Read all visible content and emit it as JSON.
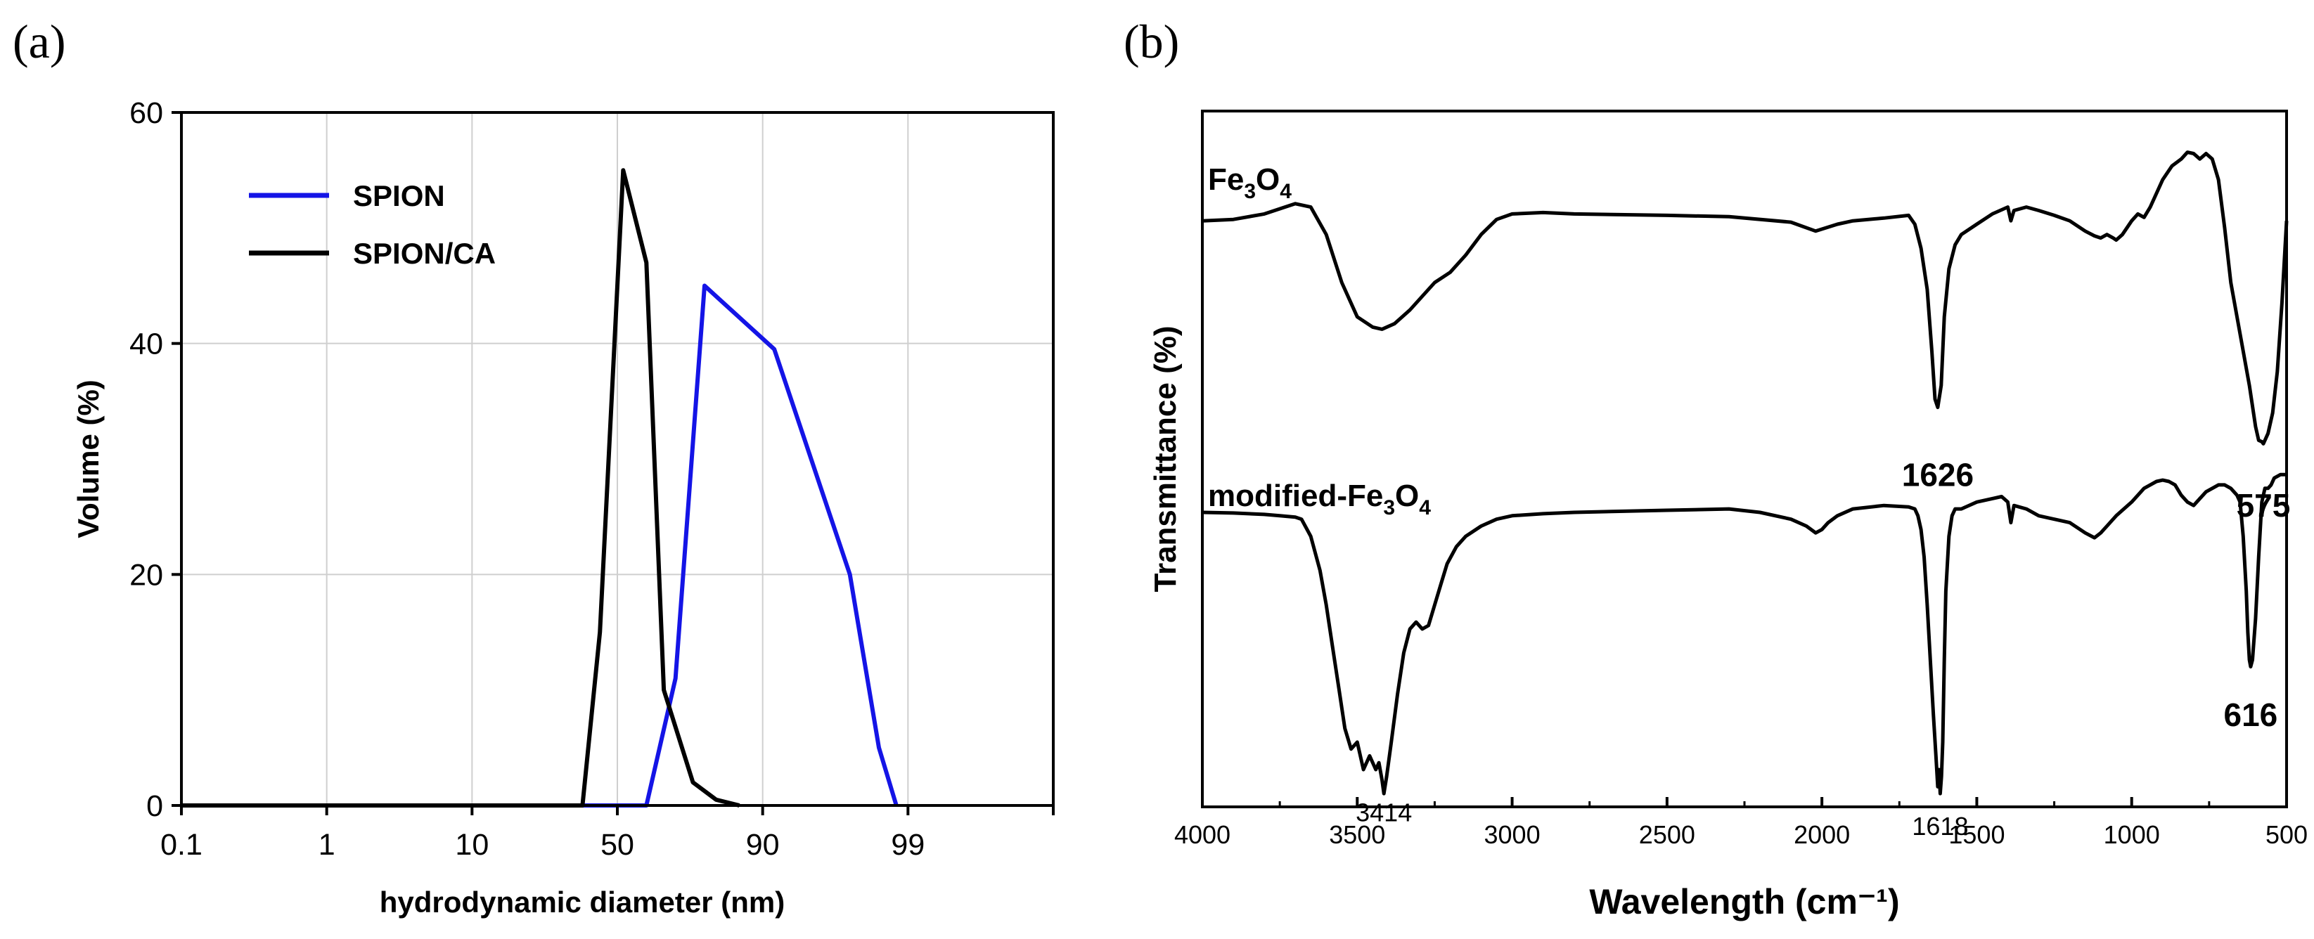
{
  "panel_labels": {
    "a": "(a)",
    "b": "(b)"
  },
  "chart_data": [
    {
      "type": "line",
      "panel": "(a)",
      "xlabel": "hydrodynamic diameter (nm)",
      "ylabel": "Volume (%)",
      "ylim": [
        0,
        60
      ],
      "xlim": [
        0,
        150
      ],
      "yticks": [
        0,
        20,
        40,
        60
      ],
      "xticks": [
        {
          "value": 0,
          "label": "0.1"
        },
        {
          "value": 25,
          "label": "1"
        },
        {
          "value": 50,
          "label": "10"
        },
        {
          "value": 75,
          "label": "50"
        },
        {
          "value": 100,
          "label": "90"
        },
        {
          "value": 125,
          "label": "99"
        },
        {
          "value": 150,
          "label": ""
        }
      ],
      "grid": true,
      "legend": "top-left",
      "series": [
        {
          "name": "SPION",
          "color": "#1414e6",
          "x": [
            0,
            80,
            85,
            90,
            102,
            115,
            120,
            123
          ],
          "y": [
            0,
            0,
            11,
            45,
            39.5,
            20,
            5,
            0
          ]
        },
        {
          "name": "SPION/CA",
          "color": "#000000",
          "x": [
            0,
            69,
            72,
            76,
            80,
            83,
            88,
            92,
            96
          ],
          "y": [
            0,
            0,
            15,
            55,
            47,
            10,
            2,
            0.5,
            0
          ]
        }
      ]
    },
    {
      "type": "line",
      "panel": "(b)",
      "xlabel": "Wavelength (cm⁻¹)",
      "ylabel": "Transmittance (%)",
      "xlim": [
        4000,
        500
      ],
      "ylim": [
        0,
        100
      ],
      "xticks": [
        4000,
        3500,
        3000,
        2500,
        2000,
        1500,
        1000,
        500
      ],
      "yticks_shown": false,
      "series": [
        {
          "name": "Fe3O4",
          "label_base": "Fe",
          "label_sub1": "3",
          "label_mid": "O",
          "label_sub2": "4",
          "color": "#000000",
          "x": [
            4000,
            3900,
            3800,
            3700,
            3650,
            3600,
            3550,
            3500,
            3450,
            3420,
            3380,
            3330,
            3250,
            3200,
            3150,
            3100,
            3050,
            3000,
            2900,
            2800,
            2500,
            2300,
            2100,
            2020,
            1950,
            1900,
            1800,
            1720,
            1700,
            1680,
            1660,
            1645,
            1635,
            1626,
            1615,
            1605,
            1590,
            1570,
            1550,
            1500,
            1450,
            1400,
            1390,
            1380,
            1340,
            1300,
            1250,
            1200,
            1150,
            1120,
            1100,
            1080,
            1060,
            1050,
            1030,
            1000,
            980,
            960,
            940,
            900,
            870,
            840,
            820,
            800,
            780,
            760,
            740,
            720,
            700,
            680,
            660,
            640,
            620,
            600,
            590,
            580,
            575,
            570,
            560,
            545,
            530,
            515,
            505,
            500
          ],
          "y": [
            84.0,
            84.2,
            85.0,
            86.5,
            86.0,
            82.0,
            75.0,
            70.0,
            68.5,
            68.2,
            69.0,
            71.0,
            75.0,
            76.5,
            79.0,
            82.0,
            84.2,
            85.0,
            85.2,
            85.0,
            84.8,
            84.6,
            83.8,
            82.5,
            83.5,
            84.0,
            84.4,
            84.8,
            83.5,
            80.0,
            74.0,
            65.0,
            58.0,
            56.8,
            60.0,
            70.0,
            77.0,
            80.5,
            82.0,
            83.5,
            85.0,
            86.0,
            84.0,
            85.5,
            86.0,
            85.5,
            84.8,
            84.0,
            82.5,
            81.8,
            81.5,
            82.0,
            81.5,
            81.2,
            82.0,
            84.0,
            85.0,
            84.5,
            86.0,
            90.0,
            92.0,
            93.0,
            94.0,
            93.8,
            93.0,
            93.8,
            93.0,
            90.0,
            83.0,
            75.0,
            70.0,
            65.0,
            60.0,
            54.0,
            52.0,
            51.8,
            51.5,
            52.0,
            53.0,
            56.0,
            62.0,
            72.0,
            80.0,
            84.0
          ]
        },
        {
          "name": "modified-Fe3O4",
          "label_base": "modified-Fe",
          "label_sub1": "3",
          "label_mid": "O",
          "label_sub2": "4",
          "color": "#000000",
          "x": [
            4000,
            3900,
            3800,
            3750,
            3700,
            3680,
            3650,
            3620,
            3600,
            3580,
            3560,
            3540,
            3520,
            3500,
            3480,
            3460,
            3440,
            3430,
            3420,
            3414,
            3405,
            3390,
            3370,
            3350,
            3330,
            3310,
            3290,
            3270,
            3250,
            3230,
            3210,
            3180,
            3150,
            3100,
            3050,
            3000,
            2900,
            2800,
            2500,
            2300,
            2200,
            2100,
            2050,
            2020,
            2000,
            1980,
            1950,
            1900,
            1800,
            1720,
            1700,
            1690,
            1680,
            1670,
            1660,
            1650,
            1640,
            1632,
            1626,
            1622,
            1618,
            1614,
            1610,
            1605,
            1600,
            1590,
            1580,
            1570,
            1550,
            1500,
            1450,
            1420,
            1400,
            1390,
            1380,
            1340,
            1300,
            1250,
            1200,
            1150,
            1120,
            1100,
            1080,
            1050,
            1000,
            980,
            960,
            940,
            920,
            900,
            880,
            860,
            840,
            820,
            800,
            780,
            760,
            740,
            720,
            700,
            680,
            670,
            660,
            650,
            640,
            630,
            625,
            620,
            616,
            610,
            600,
            590,
            580,
            570,
            560,
            550,
            540,
            520,
            505,
            500
          ],
          "y": [
            41.5,
            41.4,
            41.2,
            41.0,
            40.8,
            40.5,
            38.0,
            33.0,
            28.0,
            22.0,
            16.0,
            10.0,
            7.0,
            8.0,
            4.0,
            6.0,
            4.0,
            5.0,
            2.5,
            0.5,
            3.0,
            8.0,
            15.0,
            21.0,
            24.5,
            25.5,
            24.5,
            25.0,
            28.0,
            31.0,
            34.0,
            36.5,
            38.0,
            39.5,
            40.5,
            41.0,
            41.3,
            41.5,
            41.8,
            42.0,
            41.5,
            40.5,
            39.5,
            38.5,
            39.0,
            40.0,
            41.0,
            42.0,
            42.5,
            42.3,
            42.0,
            41.0,
            39.0,
            35.0,
            28.0,
            20.0,
            12.0,
            6.0,
            1.5,
            4.0,
            0.5,
            3.0,
            8.0,
            20.0,
            30.0,
            38.0,
            41.0,
            42.0,
            42.0,
            43.0,
            43.5,
            43.8,
            43.0,
            40.0,
            42.5,
            42.0,
            41.0,
            40.5,
            40.0,
            38.5,
            37.8,
            38.5,
            39.5,
            41.0,
            43.0,
            44.0,
            45.0,
            45.5,
            46.0,
            46.2,
            46.0,
            45.5,
            44.0,
            43.0,
            42.5,
            43.5,
            44.5,
            45.0,
            45.5,
            45.5,
            45.0,
            44.5,
            44.0,
            43.0,
            38.0,
            30.0,
            24.0,
            20.0,
            19.0,
            20.0,
            26.0,
            35.0,
            43.0,
            45.0,
            45.0,
            45.5,
            46.5,
            47.0,
            47.0,
            47.0
          ]
        }
      ],
      "annotations": [
        {
          "text": "1626",
          "x": 1626,
          "y": 47,
          "bold": true,
          "size": "large"
        },
        {
          "text": "575",
          "x": 575,
          "y": 42.5,
          "bold": true,
          "size": "large"
        },
        {
          "text": "616",
          "x": 616,
          "y": 12,
          "bold": true,
          "size": "large"
        },
        {
          "text": "3414",
          "x": 3414,
          "y": -2.5,
          "bold": false,
          "size": "small"
        },
        {
          "text": "1618",
          "x": 1618,
          "y": -4.5,
          "bold": false,
          "size": "small"
        }
      ]
    }
  ]
}
